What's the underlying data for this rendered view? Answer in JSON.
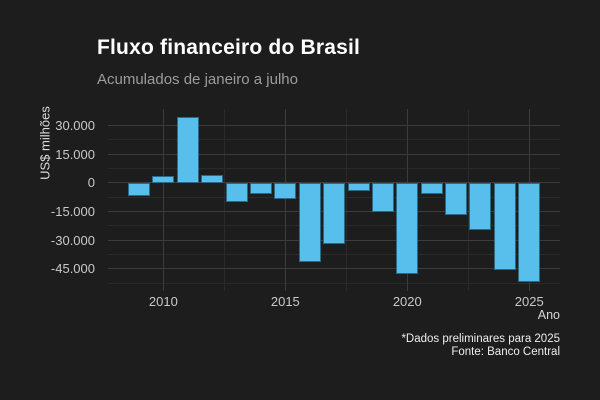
{
  "header": {
    "title": "Fluxo financeiro do Brasil",
    "subtitle": "Acumulados de janeiro a julho"
  },
  "chart_data": {
    "type": "bar",
    "title": "Fluxo financeiro do Brasil",
    "subtitle": "Acumulados de janeiro a julho",
    "xlabel": "Ano",
    "ylabel": "US$ milhões",
    "unit": "US$ milhões",
    "categories": [
      2009,
      2010,
      2011,
      2012,
      2013,
      2014,
      2015,
      2016,
      2017,
      2018,
      2019,
      2020,
      2021,
      2022,
      2023,
      2024,
      2025
    ],
    "values": [
      -7000,
      3500,
      34500,
      4000,
      -10000,
      -6000,
      -8500,
      -41500,
      -32000,
      -4500,
      -15500,
      -48000,
      -6000,
      -17000,
      -24500,
      -45500,
      -52000
    ],
    "xlim": [
      2007.73,
      2026.24
    ],
    "ylim": [
      -56400,
      38800
    ],
    "yticks_major": [
      30000,
      15000,
      0,
      -15000,
      -30000,
      -45000
    ],
    "ytick_labels": [
      "30.000",
      "15.000",
      "0",
      "-15.000",
      "-30.000",
      "-45.000"
    ],
    "yticks_minor": [
      22500,
      7500,
      -7500,
      -22500,
      -37500,
      -52500
    ],
    "xticks_major": [
      2010,
      2015,
      2020,
      2025
    ],
    "xtick_labels": [
      "2010",
      "2015",
      "2020",
      "2025"
    ],
    "xticks_minor": [
      2012.5,
      2017.5,
      2022.5
    ],
    "grid": true,
    "legend": false,
    "bar_color": "#58bfec",
    "background_color": "#1d1d1d",
    "grid_major_color": "#3c3c3c",
    "grid_minor_color": "#2a2a2a"
  },
  "footer": {
    "note": "*Dados preliminares para 2025",
    "source": "Fonte: Banco Central"
  }
}
